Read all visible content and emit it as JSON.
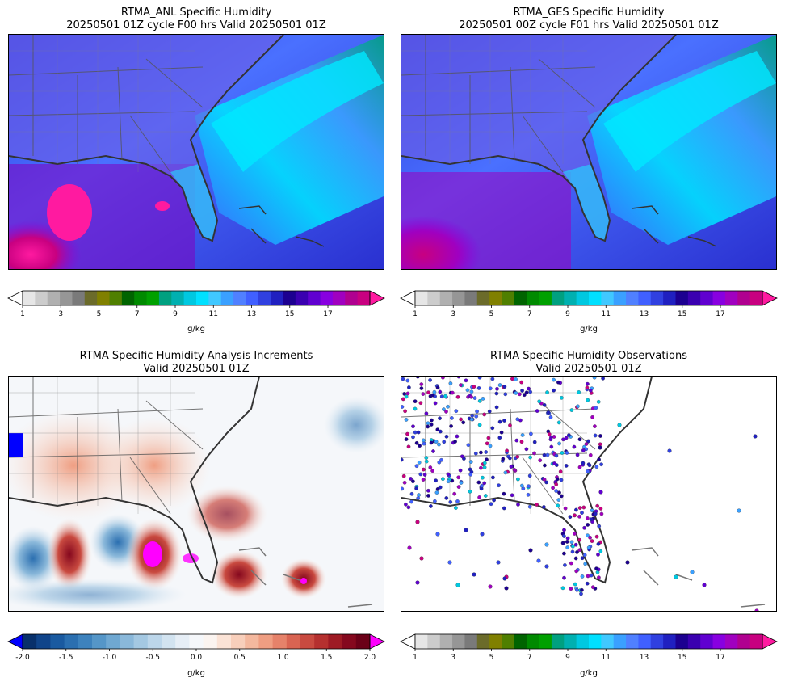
{
  "panels": [
    {
      "id": "anl",
      "title_line1": "RTMA_ANL Specific Humidity",
      "title_line2": "20250501 01Z cycle F00 hrs Valid 20250501 01Z"
    },
    {
      "id": "ges",
      "title_line1": "RTMA_GES Specific Humidity",
      "title_line2": "20250501 00Z cycle F01 hrs Valid 20250501 01Z"
    },
    {
      "id": "inc",
      "title_line1": "RTMA Specific Humidity Analysis Increments",
      "title_line2": "Valid 20250501 01Z"
    },
    {
      "id": "obs",
      "title_line1": "RTMA Specific Humidity Observations",
      "title_line2": "Valid 20250501 01Z"
    }
  ],
  "humidity_colorbar": {
    "unit": "g/kg",
    "ticks": [
      "1",
      "3",
      "5",
      "7",
      "9",
      "11",
      "13",
      "15",
      "17"
    ],
    "colors": [
      "#ffffff",
      "#e6e6e6",
      "#cccccc",
      "#b0b0b0",
      "#969696",
      "#7a7a7a",
      "#6b6b2a",
      "#808000",
      "#4f7f00",
      "#006400",
      "#008a00",
      "#00a000",
      "#00a080",
      "#00b0b0",
      "#00c8e0",
      "#00e0ff",
      "#40c8ff",
      "#3aa0ff",
      "#5080ff",
      "#4060ff",
      "#3040e0",
      "#2020c0",
      "#1c0090",
      "#3a00b0",
      "#6000d0",
      "#8800e0",
      "#a000c0",
      "#b00090",
      "#c80080",
      "#ff1aa0"
    ]
  },
  "increment_colorbar": {
    "unit": "g/kg",
    "ticks": [
      "-2.0",
      "-1.5",
      "-1.0",
      "-0.5",
      "0.0",
      "0.5",
      "1.0",
      "1.5",
      "2.0"
    ],
    "colors": [
      "#0000ff",
      "#08306b",
      "#10448a",
      "#1a5aa0",
      "#2b6fb0",
      "#3d82bd",
      "#5596c8",
      "#6fa8d2",
      "#8ab8da",
      "#a4c8e2",
      "#bcd6ea",
      "#d2e3f0",
      "#e6eef6",
      "#f5f7fa",
      "#fbf4f0",
      "#fbe3d6",
      "#f8cfbb",
      "#f4b89e",
      "#ef9e82",
      "#e6826a",
      "#d96452",
      "#c94a40",
      "#b5302f",
      "#9e1a24",
      "#85081e",
      "#6b0018",
      "#ff00ff"
    ]
  }
}
